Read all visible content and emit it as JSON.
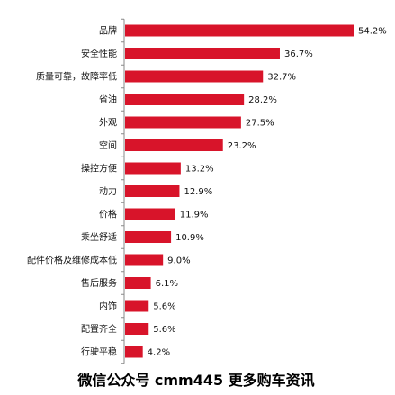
{
  "chart_data": {
    "type": "bar",
    "orientation": "horizontal",
    "categories": [
      "品牌",
      "安全性能",
      "质量可靠，故障率低",
      "省油",
      "外观",
      "空间",
      "操控方便",
      "动力",
      "价格",
      "乘坐舒适",
      "配件价格及维修成本低",
      "售后服务",
      "内饰",
      "配置齐全",
      "行驶平稳"
    ],
    "values": [
      54.2,
      36.7,
      32.7,
      28.2,
      27.5,
      23.2,
      13.2,
      12.9,
      11.9,
      10.9,
      9.0,
      6.1,
      5.6,
      5.6,
      4.2
    ],
    "value_labels": [
      "54.2%",
      "36.7%",
      "32.7%",
      "28.2%",
      "27.5%",
      "23.2%",
      "13.2%",
      "12.9%",
      "11.9%",
      "10.9%",
      "9.0%",
      "6.1%",
      "5.6%",
      "5.6%",
      "4.2%"
    ],
    "xlim": [
      0,
      54.2
    ],
    "grid": false,
    "legend": "none",
    "bar_color": "#d8142a",
    "axis_color": "#888888"
  },
  "watermark": "微信公众号 cmm445 更多购车资讯"
}
